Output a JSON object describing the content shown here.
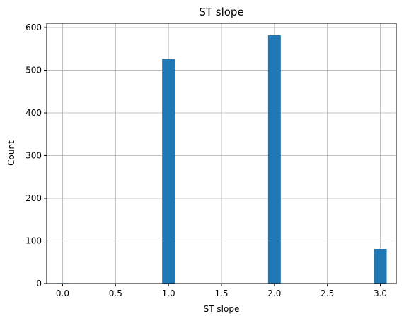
{
  "chart_data": {
    "type": "bar",
    "title": "ST slope",
    "xlabel": "ST slope",
    "ylabel": "Count",
    "x": [
      0,
      1,
      2,
      3
    ],
    "values": [
      1,
      526,
      582,
      81
    ],
    "xlim": [
      -0.15,
      3.15
    ],
    "ylim": [
      0,
      610
    ],
    "xticks": [
      "0.0",
      "0.5",
      "1.0",
      "1.5",
      "2.0",
      "2.5",
      "3.0"
    ],
    "yticks": [
      "0",
      "100",
      "200",
      "300",
      "400",
      "500",
      "600"
    ],
    "bar_width": 0.12,
    "grid": true,
    "bar_color": "#1f77b4"
  }
}
